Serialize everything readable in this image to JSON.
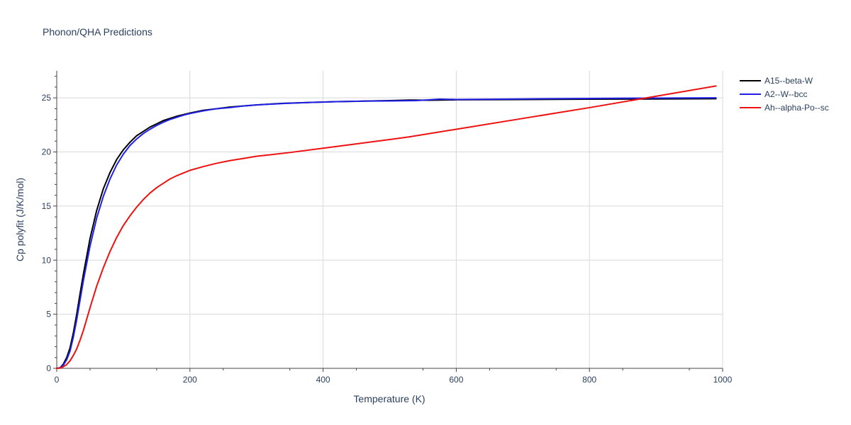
{
  "chart_data": {
    "type": "line",
    "title": "Phonon/QHA Predictions",
    "xlabel": "Temperature (K)",
    "ylabel": "Cp polyfit (J/K/mol)",
    "xlim": [
      0,
      1000
    ],
    "ylim": [
      0,
      27.5
    ],
    "x_ticks": [
      0,
      200,
      400,
      600,
      800,
      1000
    ],
    "x_tick_labels": [
      "0",
      "200",
      "400",
      "600",
      "800",
      "1000"
    ],
    "y_ticks": [
      0,
      5,
      10,
      15,
      20,
      25
    ],
    "y_tick_labels": [
      "0",
      "5",
      "10",
      "15",
      "20",
      "25"
    ],
    "grid": true,
    "legend_position": "top-right",
    "series": [
      {
        "name": "A15--beta-W",
        "color": "#000000",
        "x": [
          0,
          5,
          10,
          15,
          20,
          25,
          30,
          35,
          40,
          50,
          60,
          70,
          80,
          90,
          100,
          110,
          120,
          130,
          140,
          150,
          160,
          170,
          180,
          190,
          200,
          220,
          240,
          260,
          280,
          300,
          340,
          380,
          420,
          460,
          500,
          530,
          560,
          600,
          700,
          800,
          900,
          990
        ],
        "values": [
          0,
          0.05,
          0.4,
          1.0,
          1.9,
          3.3,
          5.0,
          6.9,
          8.7,
          12.0,
          14.6,
          16.6,
          18.1,
          19.3,
          20.2,
          20.9,
          21.5,
          21.9,
          22.3,
          22.6,
          22.9,
          23.1,
          23.3,
          23.45,
          23.6,
          23.85,
          24.0,
          24.15,
          24.25,
          24.35,
          24.5,
          24.58,
          24.65,
          24.7,
          24.75,
          24.8,
          24.78,
          24.82,
          24.85,
          24.88,
          24.9,
          24.92
        ]
      },
      {
        "name": "A2--W--bcc",
        "color": "#1f1fe6",
        "x": [
          0,
          5,
          10,
          15,
          20,
          25,
          30,
          35,
          40,
          50,
          60,
          70,
          80,
          90,
          100,
          110,
          120,
          130,
          140,
          150,
          160,
          170,
          180,
          190,
          200,
          220,
          240,
          260,
          280,
          300,
          340,
          380,
          420,
          460,
          500,
          540,
          560,
          575,
          600,
          700,
          800,
          900,
          990
        ],
        "values": [
          0,
          0.05,
          0.3,
          0.8,
          1.6,
          2.9,
          4.5,
          6.3,
          8.1,
          11.3,
          13.9,
          15.9,
          17.5,
          18.8,
          19.8,
          20.6,
          21.2,
          21.7,
          22.1,
          22.45,
          22.75,
          23.0,
          23.2,
          23.4,
          23.55,
          23.8,
          24.0,
          24.1,
          24.25,
          24.35,
          24.48,
          24.58,
          24.65,
          24.7,
          24.72,
          24.75,
          24.82,
          24.88,
          24.85,
          24.9,
          24.95,
          24.98,
          25.0
        ]
      },
      {
        "name": "Ah--alpha-Po--sc",
        "color": "#ee1111",
        "x": [
          0,
          5,
          10,
          15,
          20,
          25,
          30,
          35,
          40,
          50,
          60,
          70,
          80,
          90,
          100,
          110,
          120,
          130,
          140,
          150,
          160,
          170,
          180,
          190,
          200,
          220,
          240,
          260,
          280,
          300,
          350,
          400,
          450,
          500,
          530,
          600,
          700,
          800,
          900,
          990
        ],
        "values": [
          0,
          0.02,
          0.15,
          0.35,
          0.7,
          1.2,
          1.8,
          2.6,
          3.5,
          5.6,
          7.6,
          9.3,
          10.8,
          12.1,
          13.2,
          14.1,
          14.9,
          15.6,
          16.2,
          16.7,
          17.1,
          17.5,
          17.8,
          18.05,
          18.3,
          18.65,
          18.95,
          19.2,
          19.4,
          19.6,
          19.95,
          20.35,
          20.75,
          21.15,
          21.4,
          22.1,
          23.1,
          24.1,
          25.15,
          26.1
        ]
      }
    ]
  }
}
